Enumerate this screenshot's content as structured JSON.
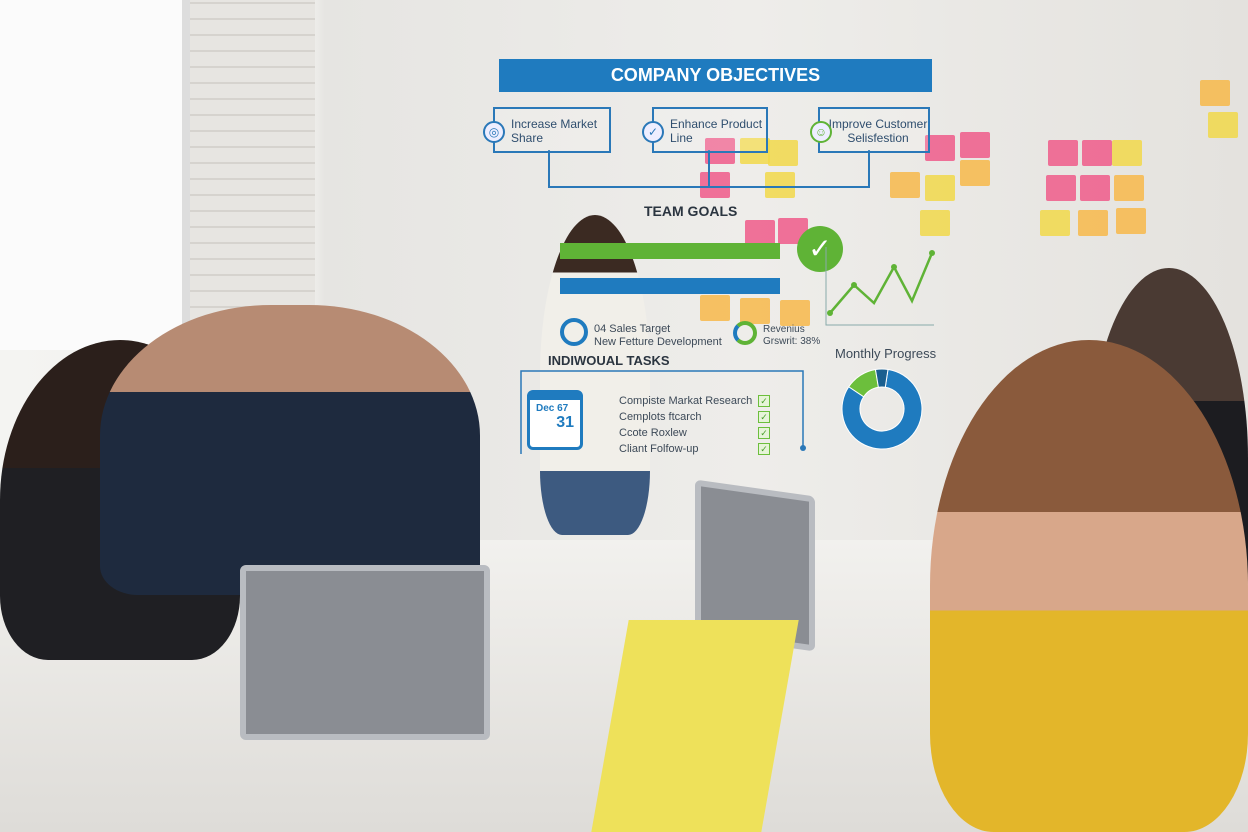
{
  "overlay": {
    "title": "COMPANY OBJECTIVES",
    "objectives": [
      {
        "label": "Increase Market Share",
        "icon": "target-icon"
      },
      {
        "label": "Enhance Product Line",
        "icon": "check-circle-icon"
      },
      {
        "label": "Improve Customer Selisfestion",
        "icon": "smile-icon"
      }
    ],
    "team_goals": {
      "title": "TEAM GOALS",
      "bar_colors": [
        "#5fb336",
        "#1f7bbf"
      ],
      "goal1": "04 Sales Target",
      "goal2": "New Fetture Development",
      "revenue": "Revenius",
      "growth": "Grswrit: 38%"
    },
    "tasks": {
      "title": "INDIWOUAL TASKS",
      "calendar_month": "Dec 67",
      "calendar_day": "31",
      "items": [
        "Compiste Markat Research",
        "Cemplots ftcarch",
        "Ccote Roxlew",
        "Cliant Folfow-up"
      ]
    },
    "monthly_progress": {
      "title": "Monthly Progress",
      "segments": [
        {
          "value": 82,
          "color": "#1f7bbf"
        },
        {
          "value": 13,
          "color": "#6cbf3c"
        },
        {
          "value": 5,
          "color": "#1a5f8f"
        }
      ]
    },
    "accent": "#1f7bbf",
    "green": "#5fb336"
  }
}
